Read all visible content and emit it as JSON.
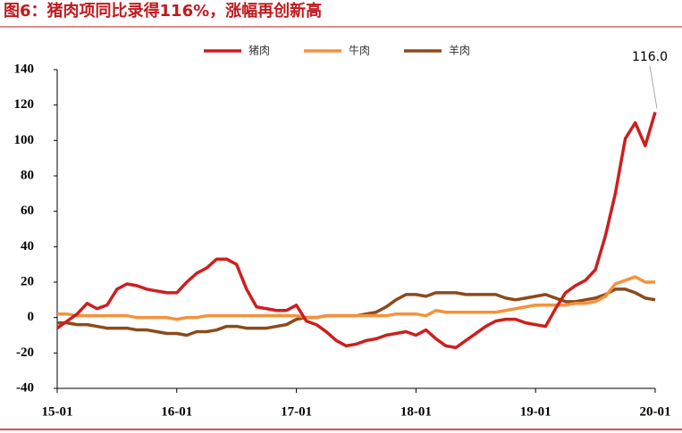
{
  "chart_data": {
    "type": "line",
    "title": "图6：猪肉项同比录得116%，涨幅再创新高",
    "categories": [
      "15-01",
      null,
      null,
      null,
      null,
      null,
      null,
      null,
      null,
      null,
      null,
      null,
      "16-01",
      null,
      null,
      null,
      null,
      null,
      null,
      null,
      null,
      null,
      null,
      null,
      "17-01",
      null,
      null,
      null,
      null,
      null,
      null,
      null,
      null,
      null,
      null,
      null,
      "18-01",
      null,
      null,
      null,
      null,
      null,
      null,
      null,
      null,
      null,
      null,
      null,
      "19-01",
      null,
      null,
      null,
      null,
      null,
      null,
      null,
      null,
      null,
      null,
      null,
      "20-01"
    ],
    "series": [
      {
        "name": "猪肉",
        "color": "#cc1f1f",
        "values": [
          -6,
          -2,
          2,
          8,
          5,
          7,
          16,
          19,
          18,
          16,
          15,
          14,
          14,
          20,
          25,
          28,
          33,
          33,
          30,
          16,
          6,
          5,
          4,
          4,
          7,
          -2,
          -4,
          -8,
          -13,
          -16,
          -15,
          -13,
          -12,
          -10,
          -9,
          -8,
          -10,
          -7,
          -12,
          -16,
          -17,
          -13,
          -9,
          -5,
          -2,
          -1,
          -1,
          -3,
          -4,
          -5,
          5,
          14,
          18,
          21,
          27,
          46,
          70,
          101,
          110,
          97,
          116
        ]
      },
      {
        "name": "牛肉",
        "color": "#f4923c",
        "values": [
          2,
          2,
          1,
          1,
          1,
          1,
          1,
          1,
          0,
          0,
          0,
          0,
          -1,
          0,
          0,
          1,
          1,
          1,
          1,
          1,
          1,
          1,
          1,
          1,
          1,
          0,
          0,
          1,
          1,
          1,
          1,
          1,
          1,
          1,
          2,
          2,
          2,
          1,
          4,
          3,
          3,
          3,
          3,
          3,
          3,
          4,
          5,
          6,
          7,
          7,
          7,
          7,
          8,
          8,
          9,
          12,
          19,
          21,
          23,
          20,
          20
        ]
      },
      {
        "name": "羊肉",
        "color": "#8b4a1c",
        "values": [
          -3,
          -3,
          -4,
          -4,
          -5,
          -6,
          -6,
          -6,
          -7,
          -7,
          -8,
          -9,
          -9,
          -10,
          -8,
          -8,
          -7,
          -5,
          -5,
          -6,
          -6,
          -6,
          -5,
          -4,
          -1,
          0,
          0,
          1,
          1,
          1,
          1,
          2,
          3,
          6,
          10,
          13,
          13,
          12,
          14,
          14,
          14,
          13,
          13,
          13,
          13,
          11,
          10,
          11,
          12,
          13,
          11,
          9,
          9,
          10,
          11,
          13,
          16,
          16,
          14,
          11,
          10
        ]
      }
    ],
    "annotation": "116.0",
    "ylim": [
      -40,
      140
    ],
    "yticks": [
      -40,
      -20,
      0,
      20,
      40,
      60,
      80,
      100,
      120,
      140
    ],
    "grid": false,
    "legend": "top"
  }
}
